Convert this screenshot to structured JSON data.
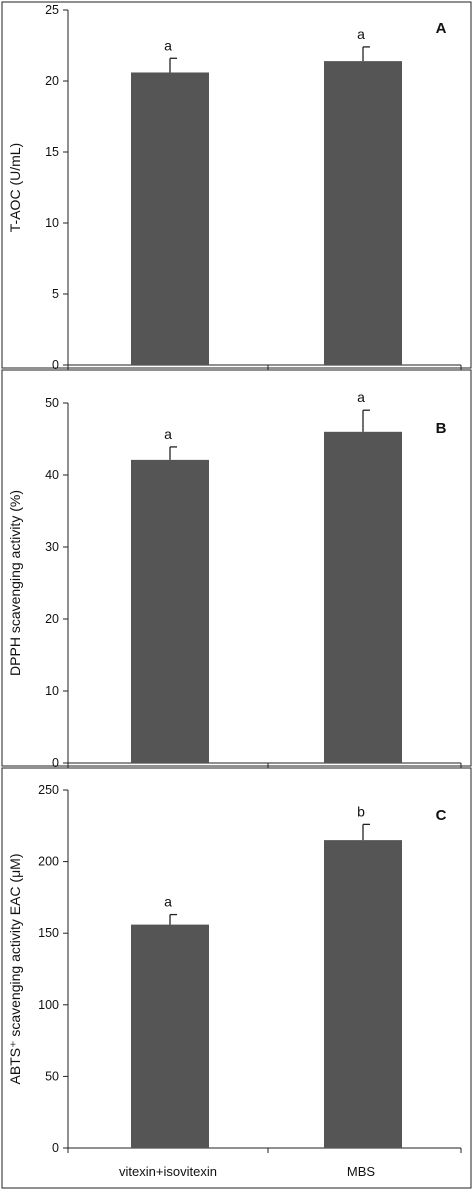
{
  "colors": {
    "bar": "#555555",
    "axis": "#222222"
  },
  "chart_data": [
    {
      "type": "bar",
      "panel_label": "A",
      "ylabel": "T-AOC (U/mL)",
      "ylim": [
        0,
        25
      ],
      "yticks": [
        0,
        5,
        10,
        15,
        20,
        25
      ],
      "categories": [
        "",
        ""
      ],
      "values": [
        20.6,
        21.4
      ],
      "errors": [
        1.0,
        1.0
      ],
      "significance": [
        "a",
        "a"
      ],
      "grid": false
    },
    {
      "type": "bar",
      "panel_label": "B",
      "ylabel": "DPPH scavenging activity (%)",
      "ylim": [
        0,
        50
      ],
      "yticks": [
        0,
        10,
        20,
        30,
        40,
        50
      ],
      "categories": [
        "",
        ""
      ],
      "values": [
        42.1,
        46.0
      ],
      "errors": [
        1.8,
        3.0
      ],
      "significance": [
        "a",
        "a"
      ],
      "grid": false
    },
    {
      "type": "bar",
      "panel_label": "C",
      "ylabel": "ABTS⁺ scavenging activity EAC (μM)",
      "ylim": [
        0,
        250
      ],
      "yticks": [
        0,
        50,
        100,
        150,
        200,
        250
      ],
      "categories": [
        "vitexin+isovitexin",
        "MBS"
      ],
      "values": [
        156,
        215
      ],
      "errors": [
        7,
        11
      ],
      "significance": [
        "a",
        "b"
      ],
      "grid": false
    }
  ]
}
